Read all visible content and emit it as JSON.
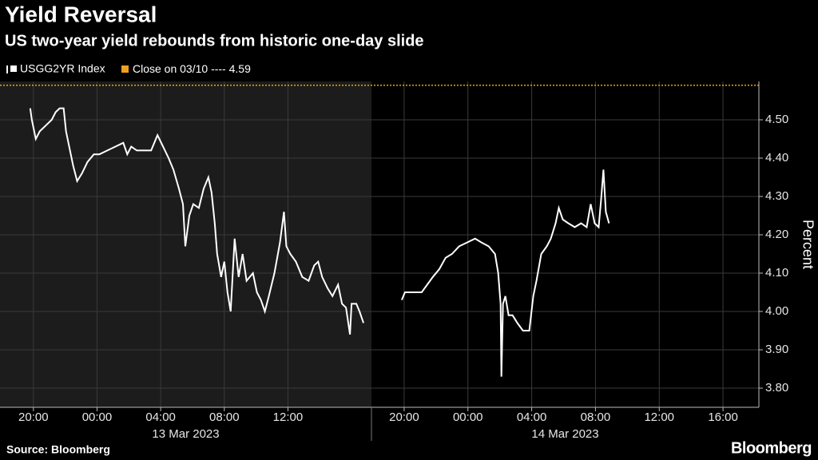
{
  "title": "Yield Reversal",
  "subtitle": "US two-year yield rebounds from historic one-day slide",
  "source": "Source: Bloomberg",
  "brand": "Bloomberg",
  "ylabel": "Percent",
  "reference_line": {
    "name": "Close on 03/10 ----",
    "value": 4.59,
    "color": "#f0a020"
  },
  "chart_data": [
    {
      "type": "line",
      "date_label": "13 Mar 2023",
      "shaded": true,
      "xlim": [
        -6.1,
        17.25
      ],
      "ylim": [
        3.75,
        4.6
      ],
      "xticks": [
        {
          "value": -4,
          "label": "20:00"
        },
        {
          "value": 0,
          "label": "00:00"
        },
        {
          "value": 4,
          "label": "04:00"
        },
        {
          "value": 8,
          "label": "08:00"
        },
        {
          "value": 12,
          "label": "12:00"
        }
      ],
      "grid": true,
      "series": [
        {
          "name": "USGG2YR Index",
          "color": "#ffffff",
          "x": [
            -4.2,
            -4.1,
            -3.85,
            -3.6,
            -3.35,
            -3.1,
            -2.85,
            -2.6,
            -2.35,
            -2.1,
            -1.95,
            -1.7,
            -1.5,
            -1.25,
            -0.95,
            -0.6,
            -0.2,
            0.15,
            0.65,
            1.15,
            1.65,
            1.9,
            2.15,
            2.5,
            2.9,
            3.4,
            3.8,
            4.15,
            4.5,
            4.8,
            5.15,
            5.4,
            5.55,
            5.8,
            6.05,
            6.4,
            6.7,
            7.0,
            7.2,
            7.4,
            7.55,
            7.8,
            8.0,
            8.2,
            8.4,
            8.65,
            8.9,
            9.15,
            9.4,
            9.8,
            10.05,
            10.3,
            10.55,
            10.8,
            11.15,
            11.5,
            11.75,
            11.9,
            12.15,
            12.5,
            12.9,
            13.3,
            13.65,
            13.9,
            14.15,
            14.5,
            14.8,
            15.15,
            15.4,
            15.65,
            15.9,
            16.0,
            16.3,
            16.5,
            16.75
          ],
          "values": [
            4.53,
            4.5,
            4.45,
            4.47,
            4.48,
            4.49,
            4.5,
            4.52,
            4.53,
            4.53,
            4.47,
            4.42,
            4.38,
            4.34,
            4.36,
            4.39,
            4.41,
            4.41,
            4.42,
            4.43,
            4.44,
            4.41,
            4.43,
            4.42,
            4.42,
            4.42,
            4.46,
            4.43,
            4.4,
            4.37,
            4.32,
            4.28,
            4.17,
            4.25,
            4.28,
            4.27,
            4.32,
            4.35,
            4.31,
            4.23,
            4.15,
            4.09,
            4.13,
            4.05,
            4.0,
            4.19,
            4.09,
            4.15,
            4.08,
            4.1,
            4.05,
            4.03,
            4.0,
            4.04,
            4.1,
            4.18,
            4.26,
            4.17,
            4.15,
            4.13,
            4.09,
            4.08,
            4.12,
            4.13,
            4.09,
            4.06,
            4.04,
            4.07,
            4.02,
            4.01,
            3.94,
            4.02,
            4.02,
            4.0,
            3.97
          ]
        }
      ]
    },
    {
      "type": "line",
      "date_label": "14 Mar 2023",
      "shaded": false,
      "xlim": [
        -6.05,
        18.25
      ],
      "ylim": [
        3.75,
        4.6
      ],
      "xticks": [
        {
          "value": -4,
          "label": "20:00"
        },
        {
          "value": 0,
          "label": "00:00"
        },
        {
          "value": 4,
          "label": "04:00"
        },
        {
          "value": 8,
          "label": "08:00"
        },
        {
          "value": 12,
          "label": "12:00"
        },
        {
          "value": 16,
          "label": "16:00"
        }
      ],
      "yticks": [
        {
          "value": 3.8,
          "label": "3.80"
        },
        {
          "value": 3.9,
          "label": "3.90"
        },
        {
          "value": 4.0,
          "label": "4.00"
        },
        {
          "value": 4.1,
          "label": "4.10"
        },
        {
          "value": 4.2,
          "label": "4.20"
        },
        {
          "value": 4.3,
          "label": "4.30"
        },
        {
          "value": 4.4,
          "label": "4.40"
        },
        {
          "value": 4.5,
          "label": "4.50"
        }
      ],
      "grid": true,
      "series": [
        {
          "color": "#ffffff",
          "x": [
            -4.15,
            -3.95,
            -3.7,
            -3.3,
            -2.9,
            -2.55,
            -2.2,
            -1.8,
            -1.4,
            -1.0,
            -0.55,
            -0.05,
            0.45,
            0.85,
            1.3,
            1.7,
            1.9,
            2.05,
            2.1,
            2.2,
            2.35,
            2.55,
            2.8,
            3.1,
            3.45,
            3.85,
            4.1,
            4.3,
            4.6,
            4.95,
            5.2,
            5.5,
            5.7,
            5.95,
            6.3,
            6.7,
            7.1,
            7.45,
            7.7,
            7.95,
            8.2,
            8.35,
            8.5,
            8.65,
            8.85
          ],
          "values": [
            4.03,
            4.05,
            4.05,
            4.05,
            4.05,
            4.07,
            4.09,
            4.11,
            4.14,
            4.15,
            4.17,
            4.18,
            4.19,
            4.18,
            4.17,
            4.15,
            4.1,
            4.02,
            3.83,
            4.02,
            4.04,
            3.99,
            3.99,
            3.97,
            3.95,
            3.95,
            4.04,
            4.08,
            4.15,
            4.17,
            4.19,
            4.23,
            4.27,
            4.24,
            4.23,
            4.22,
            4.23,
            4.22,
            4.28,
            4.23,
            4.22,
            4.29,
            4.37,
            4.26,
            4.23
          ]
        }
      ]
    }
  ]
}
